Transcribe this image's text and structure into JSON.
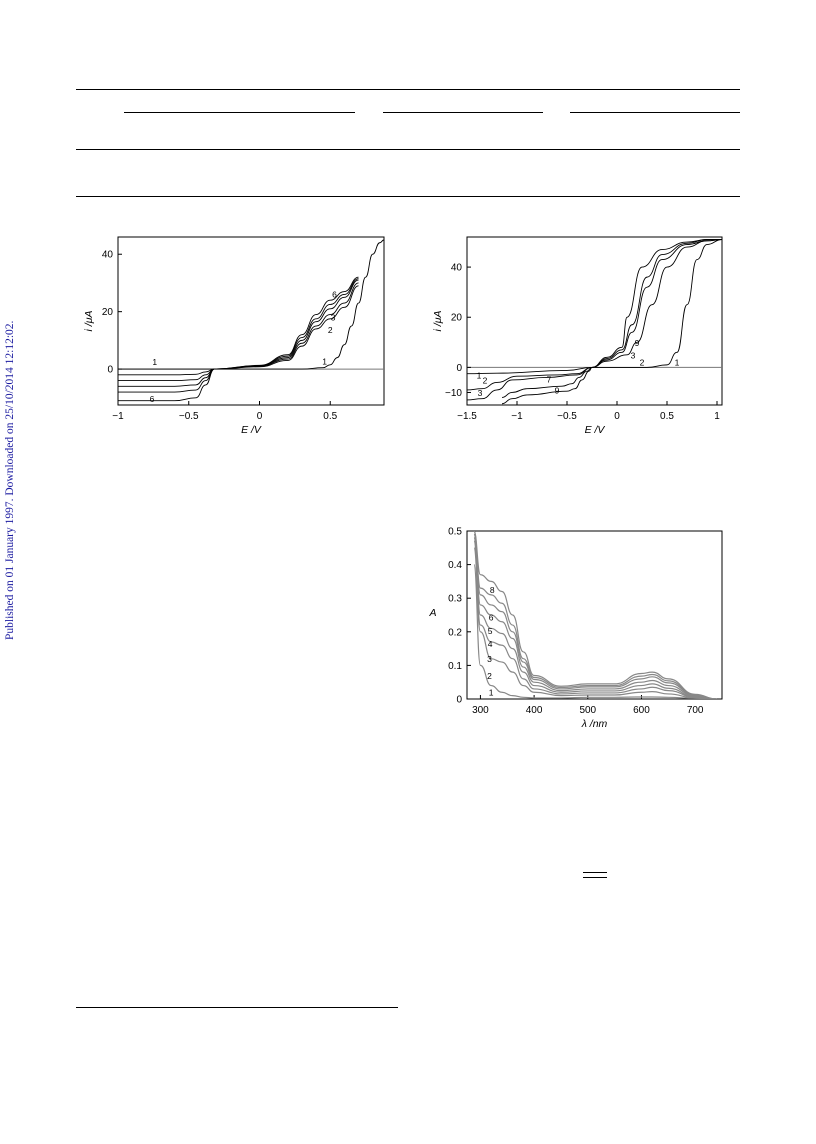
{
  "page": {
    "sidebar_text": "Published on 01 January 1997. Downloaded on 25/10/2014 12:12:02."
  },
  "figures": {
    "fig1": {
      "chart_data": {
        "type": "line",
        "xlabel": "E /V",
        "ylabel": "i /μA",
        "xlim": [
          -1.0,
          0.88
        ],
        "ylim": [
          -12.5,
          46
        ],
        "xticks": [
          -1,
          -0.5,
          0,
          0.5
        ],
        "xtick_labels": [
          "−1",
          "−0.5",
          "0",
          "0.5"
        ],
        "yticks": [
          0,
          20,
          40
        ],
        "ytick_labels": [
          "0",
          "20",
          "40"
        ],
        "grid": false,
        "series": [
          {
            "name": "1",
            "x": [
              -1.0,
              -0.4,
              0.0,
              0.3,
              0.45,
              0.5,
              0.55,
              0.6,
              0.65,
              0.7,
              0.75,
              0.8,
              0.85,
              0.88
            ],
            "y": [
              0,
              0,
              0,
              0,
              0.5,
              1.5,
              4,
              8.5,
              15,
              23,
              32,
              40,
              44,
              45
            ]
          },
          {
            "name": "",
            "x": [
              -1.0,
              -0.6,
              -0.45,
              -0.38,
              -0.32,
              0.0,
              0.2,
              0.3,
              0.4,
              0.5,
              0.6,
              0.7
            ],
            "y": [
              -2,
              -2,
              -1.8,
              -1,
              0,
              0.8,
              3,
              8,
              14,
              17.5,
              21.5,
              29
            ]
          },
          {
            "name": "2",
            "x": [
              -1.0,
              -0.6,
              -0.45,
              -0.38,
              -0.32,
              0.0,
              0.2,
              0.3,
              0.4,
              0.5,
              0.6,
              0.7
            ],
            "y": [
              -4,
              -4,
              -3.7,
              -2,
              0,
              1.0,
              3.5,
              9,
              15,
              19,
              23,
              30
            ]
          },
          {
            "name": "3",
            "x": [
              -1.0,
              -0.6,
              -0.45,
              -0.38,
              -0.32,
              0.0,
              0.2,
              0.3,
              0.4,
              0.5,
              0.6,
              0.7
            ],
            "y": [
              -6,
              -6,
              -5.5,
              -3,
              0,
              1.1,
              4,
              10,
              16.5,
              21,
              25,
              31
            ]
          },
          {
            "name": "",
            "x": [
              -1.0,
              -0.6,
              -0.45,
              -0.38,
              -0.32,
              0.0,
              0.2,
              0.3,
              0.4,
              0.5,
              0.6,
              0.7
            ],
            "y": [
              -8,
              -8,
              -7.3,
              -4,
              0,
              1.2,
              4.5,
              11,
              17.5,
              22.5,
              26,
              31.5
            ]
          },
          {
            "name": "6",
            "x": [
              -1.0,
              -0.6,
              -0.45,
              -0.38,
              -0.32,
              0.0,
              0.2,
              0.3,
              0.4,
              0.5,
              0.6,
              0.7
            ],
            "y": [
              -11,
              -11,
              -10,
              -5.5,
              0,
              1.3,
              5,
              12,
              19,
              24,
              27,
              32
            ]
          }
        ]
      }
    },
    "fig2": {
      "chart_data": {
        "type": "line",
        "xlabel": "E /V",
        "ylabel": "i /μA",
        "xlim": [
          -1.5,
          1.05
        ],
        "ylim": [
          -15,
          52
        ],
        "xticks": [
          -1.5,
          -1,
          -0.5,
          0,
          0.5,
          1
        ],
        "xtick_labels": [
          "−1.5",
          "−1",
          "−0.5",
          "0",
          "0.5",
          "1"
        ],
        "yticks": [
          -10,
          0,
          20,
          40
        ],
        "ytick_labels": [
          "−10",
          "0",
          "20",
          "40"
        ],
        "grid": false,
        "series": [
          {
            "name": "1",
            "x": [
              -1.5,
              -1.2,
              -0.5,
              -0.25,
              0.3,
              0.5,
              0.6,
              0.7,
              0.8,
              0.9,
              1.05
            ],
            "y": [
              -2.5,
              -2.3,
              -1.2,
              0,
              0,
              1,
              6,
              25,
              43,
              49,
              51
            ]
          },
          {
            "name": "2",
            "x": [
              -1.5,
              -1.35,
              -1.2,
              -1.0,
              -0.6,
              -0.4,
              -0.25,
              -0.1,
              0.1,
              0.2,
              0.35,
              0.5,
              0.7,
              0.9,
              1.05
            ],
            "y": [
              -9,
              -8.5,
              -6,
              -3.5,
              -3,
              -2.5,
              0,
              2.5,
              5,
              10,
              25,
              40,
              48,
              50.5,
              51
            ]
          },
          {
            "name": "3",
            "x": [
              -1.5,
              -1.35,
              -1.2,
              -1.05,
              -0.7,
              -0.4,
              -0.25,
              -0.1,
              0.05,
              0.15,
              0.3,
              0.45,
              0.7,
              0.9,
              1.05
            ],
            "y": [
              -13,
              -12.5,
              -9,
              -5,
              -4,
              -3,
              0,
              3,
              6,
              14,
              32,
              43,
              49,
              50.5,
              51
            ]
          },
          {
            "name": "7",
            "x": [
              -1.15,
              -1.05,
              -0.9,
              -0.55,
              -0.45,
              -0.38,
              -0.3,
              -0.25,
              -0.1,
              0.05,
              0.15,
              0.3,
              0.45,
              0.7,
              0.9,
              1.05
            ],
            "y": [
              -12,
              -10,
              -8.5,
              -7.5,
              -6.5,
              -4,
              -1.5,
              0,
              3.5,
              7,
              17,
              36,
              45,
              49.5,
              51,
              51
            ]
          },
          {
            "name": "9",
            "x": [
              -1.15,
              -1.05,
              -0.9,
              -0.5,
              -0.42,
              -0.35,
              -0.28,
              -0.25,
              -0.1,
              0.05,
              0.1,
              0.25,
              0.45,
              0.7,
              0.9,
              1.05
            ],
            "y": [
              -14.5,
              -12.5,
              -11,
              -9.5,
              -8.5,
              -5,
              -1.5,
              0,
              4,
              8,
              20,
              40,
              47,
              50,
              51,
              51
            ]
          }
        ]
      }
    },
    "fig3": {
      "chart_data": {
        "type": "line",
        "xlabel": "λ /nm",
        "ylabel": "A",
        "xlim": [
          275,
          750
        ],
        "ylim": [
          0,
          0.5
        ],
        "xticks": [
          300,
          400,
          500,
          600,
          700
        ],
        "xtick_labels": [
          "300",
          "400",
          "500",
          "600",
          "700"
        ],
        "yticks": [
          0,
          0.1,
          0.2,
          0.3,
          0.4,
          0.5
        ],
        "ytick_labels": [
          "0",
          "0.1",
          "0.2",
          "0.3",
          "0.4",
          "0.5"
        ],
        "grid": false,
        "series": [
          {
            "name": "1",
            "x": [
              288,
              300,
              320,
              340,
              360,
              380,
              400,
              450,
              500,
              550,
              600,
              620,
              650,
              700,
              740
            ],
            "y": [
              0.4,
              0.1,
              0.04,
              0.02,
              0.01,
              0.005,
              0.003,
              0.003,
              0.005,
              0.005,
              0.006,
              0.006,
              0.005,
              0.002,
              0.0
            ]
          },
          {
            "name": "2",
            "x": [
              288,
              300,
              320,
              340,
              360,
              380,
              400,
              450,
              500,
              550,
              600,
              620,
              650,
              700,
              740
            ],
            "y": [
              0.45,
              0.2,
              0.12,
              0.11,
              0.08,
              0.04,
              0.02,
              0.01,
              0.012,
              0.012,
              0.02,
              0.022,
              0.015,
              0.003,
              0.0
            ]
          },
          {
            "name": "3",
            "x": [
              288,
              300,
              320,
              340,
              360,
              380,
              400,
              450,
              500,
              550,
              600,
              620,
              650,
              700,
              740
            ],
            "y": [
              0.47,
              0.22,
              0.17,
              0.16,
              0.12,
              0.06,
              0.03,
              0.015,
              0.018,
              0.018,
              0.03,
              0.035,
              0.025,
              0.005,
              0.0
            ]
          },
          {
            "name": "4",
            "x": [
              288,
              300,
              320,
              340,
              360,
              380,
              400,
              450,
              500,
              550,
              600,
              620,
              650,
              700,
              740
            ],
            "y": [
              0.48,
              0.25,
              0.21,
              0.195,
              0.15,
              0.08,
              0.04,
              0.02,
              0.024,
              0.024,
              0.04,
              0.045,
              0.032,
              0.007,
              0.0
            ]
          },
          {
            "name": "5",
            "x": [
              288,
              300,
              320,
              340,
              360,
              380,
              400,
              450,
              500,
              550,
              600,
              620,
              650,
              700,
              740
            ],
            "y": [
              0.49,
              0.28,
              0.25,
              0.23,
              0.18,
              0.095,
              0.05,
              0.025,
              0.03,
              0.03,
              0.05,
              0.055,
              0.04,
              0.009,
              0.0
            ]
          },
          {
            "name": "6",
            "x": [
              288,
              300,
              320,
              340,
              360,
              380,
              400,
              450,
              500,
              550,
              600,
              620,
              650,
              700,
              740
            ],
            "y": [
              0.5,
              0.31,
              0.28,
              0.26,
              0.2,
              0.11,
              0.058,
              0.03,
              0.036,
              0.036,
              0.06,
              0.066,
              0.048,
              0.011,
              0.0
            ]
          },
          {
            "name": "",
            "x": [
              288,
              300,
              320,
              340,
              360,
              380,
              400,
              450,
              500,
              550,
              600,
              620,
              650,
              700,
              740
            ],
            "y": [
              0.5,
              0.33,
              0.31,
              0.285,
              0.22,
              0.12,
              0.064,
              0.034,
              0.04,
              0.04,
              0.068,
              0.073,
              0.054,
              0.012,
              0.0
            ]
          },
          {
            "name": "8",
            "x": [
              288,
              300,
              320,
              340,
              360,
              380,
              400,
              450,
              500,
              550,
              600,
              620,
              650,
              700,
              740
            ],
            "y": [
              0.5,
              0.37,
              0.35,
              0.32,
              0.25,
              0.14,
              0.07,
              0.038,
              0.045,
              0.045,
              0.076,
              0.08,
              0.06,
              0.014,
              0.0
            ]
          }
        ]
      }
    }
  }
}
